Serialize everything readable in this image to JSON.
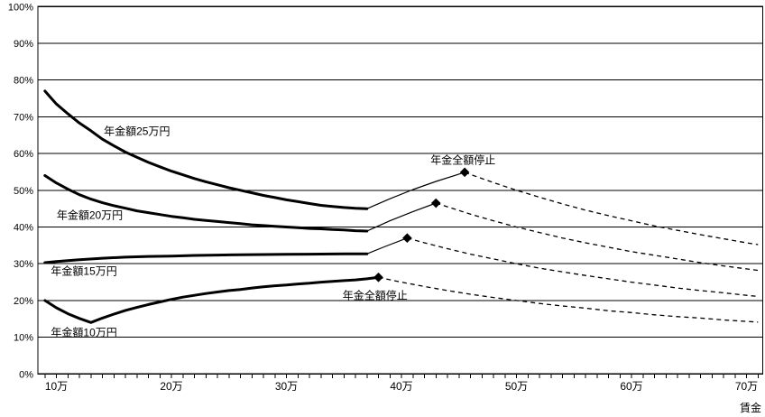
{
  "page": {
    "background": "#ffffff",
    "ink_color": "#000000",
    "title": ""
  },
  "chart_data": {
    "type": "line",
    "title": "",
    "xlabel": "賃金",
    "ylabel": "",
    "ylim": [
      0,
      100
    ],
    "x_range": [
      8.4,
      71.5
    ],
    "grid": "horizontal-every-10pct",
    "legend_position": "none-inline-labels",
    "y_tick_values": [
      0,
      10,
      20,
      30,
      40,
      50,
      60,
      70,
      80,
      90,
      100
    ],
    "y_tick_labels": [
      "0%",
      "10%",
      "20%",
      "30%",
      "40%",
      "50%",
      "60%",
      "70%",
      "80%",
      "90%",
      "100%"
    ],
    "x_tick_values": [
      10,
      20,
      30,
      40,
      50,
      60,
      70
    ],
    "x_tick_labels": [
      "10万",
      "20万",
      "30万",
      "40万",
      "50万",
      "60万",
      "70万"
    ],
    "x_minor_tick_start": 9,
    "x_minor_tick_end": 71,
    "x_minor_tick_step": 1,
    "marker_style": "filled-black-diamond",
    "series": [
      {
        "name": "年金額25万円",
        "pension_monthly_10k_yen": 25,
        "full_stop_wage": 45.5,
        "full_stop_pct": 54.9,
        "solid": [
          [
            9,
            77
          ],
          [
            10,
            73.5
          ],
          [
            11,
            70.8
          ],
          [
            12,
            68.3
          ],
          [
            13,
            66.2
          ],
          [
            14,
            63.9
          ],
          [
            15,
            62.1
          ],
          [
            16,
            60.4
          ],
          [
            17,
            59.0
          ],
          [
            18,
            57.6
          ],
          [
            19,
            56.4
          ],
          [
            20,
            55.2
          ],
          [
            21,
            54.2
          ],
          [
            22,
            53.2
          ],
          [
            23,
            52.3
          ],
          [
            24,
            51.5
          ],
          [
            25,
            50.7
          ],
          [
            26,
            50.0
          ],
          [
            27,
            49.3
          ],
          [
            28,
            48.6
          ],
          [
            29,
            48.0
          ],
          [
            30,
            47.4
          ],
          [
            31,
            46.9
          ],
          [
            32,
            46.4
          ],
          [
            33,
            45.9
          ],
          [
            34,
            45.6
          ],
          [
            35,
            45.3
          ],
          [
            36,
            45.1
          ],
          [
            37,
            45.0
          ]
        ],
        "rise": [
          [
            37,
            45.0
          ],
          [
            39,
            47.7
          ],
          [
            41,
            50.2
          ],
          [
            43,
            52.4
          ],
          [
            45.5,
            54.9
          ]
        ],
        "stop": [
          45.5,
          54.9
        ],
        "dashed": [
          [
            45.5,
            54.9
          ],
          [
            46,
            54.3
          ],
          [
            48,
            52.1
          ],
          [
            50,
            50.0
          ],
          [
            52,
            48.1
          ],
          [
            54,
            46.3
          ],
          [
            56,
            44.6
          ],
          [
            58,
            43.1
          ],
          [
            60,
            41.7
          ],
          [
            62,
            40.3
          ],
          [
            64,
            39.1
          ],
          [
            66,
            37.9
          ],
          [
            68,
            36.8
          ],
          [
            70,
            35.7
          ],
          [
            71,
            35.2
          ]
        ]
      },
      {
        "name": "年金額20万円",
        "pension_monthly_10k_yen": 20,
        "full_stop_wage": 43,
        "full_stop_pct": 46.5,
        "solid": [
          [
            9,
            54.0
          ],
          [
            10,
            52.0
          ],
          [
            11,
            50.3
          ],
          [
            12,
            48.8
          ],
          [
            13,
            47.6
          ],
          [
            14,
            46.6
          ],
          [
            15,
            45.8
          ],
          [
            16,
            45.1
          ],
          [
            17,
            44.4
          ],
          [
            18,
            43.9
          ],
          [
            19,
            43.4
          ],
          [
            20,
            42.9
          ],
          [
            21,
            42.5
          ],
          [
            22,
            42.1
          ],
          [
            23,
            41.8
          ],
          [
            24,
            41.5
          ],
          [
            25,
            41.2
          ],
          [
            26,
            40.9
          ],
          [
            27,
            40.6
          ],
          [
            28,
            40.4
          ],
          [
            29,
            40.2
          ],
          [
            30,
            40.0
          ],
          [
            31,
            39.8
          ],
          [
            32,
            39.6
          ],
          [
            33,
            39.5
          ],
          [
            34,
            39.3
          ],
          [
            35,
            39.2
          ],
          [
            36,
            39.0
          ],
          [
            37,
            38.9
          ]
        ],
        "rise": [
          [
            37,
            38.9
          ],
          [
            39,
            41.7
          ],
          [
            41,
            44.2
          ],
          [
            43,
            46.5
          ]
        ],
        "stop": [
          43,
          46.5
        ],
        "dashed": [
          [
            43,
            46.5
          ],
          [
            44,
            45.5
          ],
          [
            46,
            43.5
          ],
          [
            48,
            41.7
          ],
          [
            50,
            40.0
          ],
          [
            52,
            38.5
          ],
          [
            54,
            37.0
          ],
          [
            56,
            35.7
          ],
          [
            58,
            34.5
          ],
          [
            60,
            33.3
          ],
          [
            62,
            32.3
          ],
          [
            64,
            31.3
          ],
          [
            66,
            30.3
          ],
          [
            68,
            29.4
          ],
          [
            70,
            28.6
          ],
          [
            71,
            28.2
          ]
        ]
      },
      {
        "name": "年金額15万円",
        "pension_monthly_10k_yen": 15,
        "full_stop_wage": 40.5,
        "full_stop_pct": 37.0,
        "solid": [
          [
            9,
            30.3
          ],
          [
            10,
            30.6
          ],
          [
            12,
            31.1
          ],
          [
            14,
            31.5
          ],
          [
            16,
            31.8
          ],
          [
            18,
            32.0
          ],
          [
            20,
            32.1
          ],
          [
            22,
            32.25
          ],
          [
            24,
            32.35
          ],
          [
            26,
            32.45
          ],
          [
            28,
            32.5
          ],
          [
            30,
            32.55
          ],
          [
            32,
            32.6
          ],
          [
            34,
            32.65
          ],
          [
            36,
            32.7
          ],
          [
            37,
            32.7
          ]
        ],
        "rise": [
          [
            37,
            32.7
          ],
          [
            38.5,
            34.6
          ],
          [
            40.5,
            37.0
          ]
        ],
        "stop": [
          40.5,
          37.0
        ],
        "dashed": [
          [
            40.5,
            37.0
          ],
          [
            42,
            35.7
          ],
          [
            44,
            34.1
          ],
          [
            46,
            32.6
          ],
          [
            48,
            31.3
          ],
          [
            50,
            30.0
          ],
          [
            52,
            28.8
          ],
          [
            54,
            27.8
          ],
          [
            56,
            26.8
          ],
          [
            58,
            25.9
          ],
          [
            60,
            25.0
          ],
          [
            62,
            24.2
          ],
          [
            64,
            23.4
          ],
          [
            66,
            22.7
          ],
          [
            68,
            22.1
          ],
          [
            70,
            21.4
          ],
          [
            71,
            21.1
          ]
        ]
      },
      {
        "name": "年金額10万円",
        "pension_monthly_10k_yen": 10,
        "full_stop_wage": 38,
        "full_stop_pct": 26.3,
        "solid": [
          [
            9,
            20.0
          ],
          [
            10,
            18.0
          ],
          [
            11,
            16.4
          ],
          [
            12,
            15.1
          ],
          [
            13,
            14.0
          ],
          [
            14,
            15.2
          ],
          [
            15,
            16.3
          ],
          [
            16,
            17.3
          ],
          [
            17,
            18.1
          ],
          [
            18,
            18.9
          ],
          [
            19,
            19.6
          ],
          [
            20,
            20.3
          ],
          [
            21,
            20.9
          ],
          [
            22,
            21.4
          ],
          [
            23,
            21.9
          ],
          [
            24,
            22.3
          ],
          [
            25,
            22.7
          ],
          [
            26,
            23.0
          ],
          [
            27,
            23.4
          ],
          [
            28,
            23.7
          ],
          [
            29,
            24.0
          ],
          [
            30,
            24.2
          ],
          [
            31,
            24.5
          ],
          [
            32,
            24.7
          ],
          [
            33,
            25.0
          ],
          [
            34,
            25.2
          ],
          [
            35,
            25.4
          ],
          [
            36,
            25.6
          ],
          [
            37,
            25.9
          ],
          [
            38,
            26.3
          ]
        ],
        "rise": null,
        "stop": [
          38,
          26.3
        ],
        "dashed": [
          [
            38,
            26.3
          ],
          [
            40,
            25.0
          ],
          [
            42,
            23.8
          ],
          [
            44,
            22.7
          ],
          [
            46,
            21.7
          ],
          [
            48,
            20.8
          ],
          [
            50,
            20.0
          ],
          [
            52,
            19.2
          ],
          [
            54,
            18.5
          ],
          [
            56,
            17.9
          ],
          [
            58,
            17.2
          ],
          [
            60,
            16.7
          ],
          [
            62,
            16.1
          ],
          [
            64,
            15.6
          ],
          [
            66,
            15.2
          ],
          [
            68,
            14.7
          ],
          [
            70,
            14.3
          ],
          [
            71,
            14.1
          ]
        ]
      }
    ],
    "annotations": [
      {
        "text": "年金額25万円",
        "x": 17.0,
        "y": 66.0,
        "role": "series-label"
      },
      {
        "text": "年金額20万円",
        "x": 12.9,
        "y": 43.2,
        "role": "series-label"
      },
      {
        "text": "年金額15万円",
        "x": 12.4,
        "y": 28.0,
        "role": "series-label"
      },
      {
        "text": "年金額10万円",
        "x": 12.4,
        "y": 11.3,
        "role": "series-label"
      },
      {
        "text": "年金全額停止",
        "x": 45.35,
        "y": 58.2,
        "role": "full-stop-label-upper"
      },
      {
        "text": "年金全額停止",
        "x": 37.7,
        "y": 21.35,
        "role": "full-stop-label-lower"
      }
    ]
  }
}
